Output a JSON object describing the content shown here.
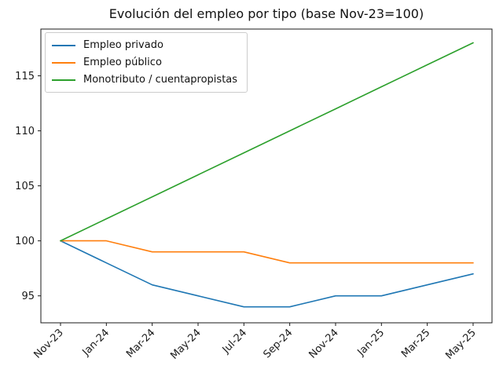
{
  "chart_data": {
    "type": "line",
    "title": "Evolución del empleo por tipo (base Nov-23=100)",
    "xlabel": "",
    "ylabel": "",
    "grid": false,
    "legend_position": "upper left",
    "categories": [
      "Nov-23",
      "Jan-24",
      "Mar-24",
      "May-24",
      "Jul-24",
      "Sep-24",
      "Nov-24",
      "Jan-25",
      "Mar-25",
      "May-25"
    ],
    "series": [
      {
        "name": "Empleo privado",
        "color": "#1f77b4",
        "values": [
          100,
          98,
          96,
          95,
          94,
          94,
          95,
          95,
          96,
          97
        ]
      },
      {
        "name": "Empleo público",
        "color": "#ff7f0e",
        "values": [
          100,
          100,
          99,
          99,
          99,
          98,
          98,
          98,
          98,
          98
        ]
      },
      {
        "name": "Monotributo / cuentapropistas",
        "color": "#2ca02c",
        "values": [
          100,
          102,
          104,
          106,
          108,
          110,
          112,
          114,
          116,
          118
        ]
      }
    ],
    "yticks": [
      95,
      100,
      105,
      110,
      115
    ],
    "ylim": [
      92.55,
      119.25
    ],
    "axis_color": "#1a1a1a"
  }
}
